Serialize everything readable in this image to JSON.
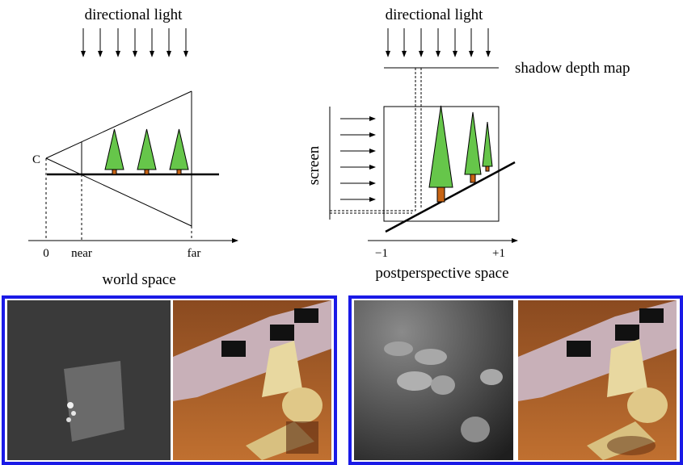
{
  "top_left": {
    "light_label": "directional light",
    "camera_label": "C",
    "axis_ticks": [
      "0",
      "near",
      "far"
    ],
    "space_label": "world space"
  },
  "top_right": {
    "light_label": "directional light",
    "map_label": "shadow depth map",
    "screen_label": "screen",
    "axis_ticks": [
      "−1",
      "+1"
    ],
    "space_label": "postperspective space"
  },
  "renders": {
    "left_pair": [
      "standard shadow depth map",
      "standard shadow map chess scene render"
    ],
    "right_pair": [
      "perspective shadow depth map",
      "perspective shadow map chess scene render"
    ]
  },
  "colors": {
    "tree_crown": "#66c64a",
    "tree_trunk": "#c86414",
    "panel_border": "#1a1ae6"
  }
}
